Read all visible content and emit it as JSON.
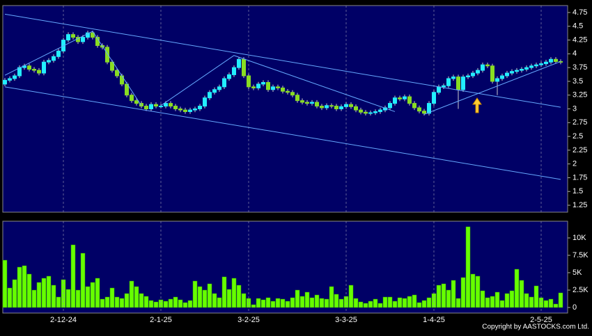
{
  "chart_data": [
    {
      "type": "candlestick",
      "open": [
        3.45,
        3.52,
        3.55,
        3.6,
        3.75,
        3.78,
        3.72,
        3.7,
        3.65,
        3.85,
        3.88,
        3.95,
        4.05,
        4.25,
        4.35,
        4.3,
        4.22,
        4.3,
        4.38,
        4.3,
        4.15,
        4.12,
        3.85,
        3.7,
        3.6,
        3.45,
        3.25,
        3.15,
        3.1,
        3.05,
        3.0,
        3.08,
        3.05,
        3.05,
        3.1,
        3.05,
        3.0,
        2.98,
        2.95,
        2.98,
        3.0,
        3.05,
        3.2,
        3.3,
        3.35,
        3.4,
        3.55,
        3.62,
        3.75,
        3.9,
        3.6,
        3.4,
        3.38,
        3.45,
        3.48,
        3.35,
        3.4,
        3.38,
        3.32,
        3.3,
        3.25,
        3.15,
        3.12,
        3.1,
        3.12,
        3.05,
        3.02,
        3.06,
        3.05,
        3.0,
        3.04,
        3.08,
        3.04,
        2.98,
        2.94,
        2.92,
        2.93,
        2.95,
        2.98,
        3.02,
        3.1,
        3.2,
        3.18,
        3.22,
        3.1,
        3.02,
        2.96,
        2.92,
        3.1,
        3.3,
        3.4,
        3.42,
        3.55,
        3.58,
        3.35,
        3.58,
        3.6,
        3.65,
        3.7,
        3.8,
        3.78,
        3.5,
        3.55,
        3.6,
        3.65,
        3.68,
        3.7,
        3.72,
        3.75,
        3.78,
        3.8,
        3.82,
        3.85,
        3.9,
        3.86
      ],
      "high": [
        3.56,
        3.59,
        3.64,
        3.79,
        3.82,
        3.82,
        3.76,
        3.74,
        3.89,
        3.92,
        3.99,
        4.09,
        4.29,
        4.39,
        4.39,
        4.34,
        4.34,
        4.42,
        4.42,
        4.34,
        4.19,
        4.16,
        3.89,
        3.74,
        3.64,
        3.49,
        3.29,
        3.19,
        3.14,
        3.09,
        3.12,
        3.12,
        3.09,
        3.14,
        3.14,
        3.09,
        3.04,
        3.02,
        3.02,
        3.04,
        3.09,
        3.24,
        3.34,
        3.39,
        3.44,
        3.59,
        3.66,
        3.79,
        3.94,
        3.94,
        3.64,
        3.44,
        3.49,
        3.52,
        3.52,
        3.44,
        3.44,
        3.42,
        3.36,
        3.34,
        3.29,
        3.19,
        3.16,
        3.16,
        3.16,
        3.09,
        3.1,
        3.1,
        3.09,
        3.08,
        3.12,
        3.12,
        3.08,
        3.02,
        2.98,
        2.97,
        2.99,
        3.02,
        3.06,
        3.14,
        3.24,
        3.24,
        3.26,
        3.26,
        3.14,
        3.06,
        3.0,
        3.14,
        3.34,
        3.44,
        3.46,
        3.59,
        3.62,
        3.62,
        3.62,
        3.64,
        3.69,
        3.74,
        3.84,
        3.84,
        3.82,
        3.59,
        3.64,
        3.69,
        3.72,
        3.74,
        3.76,
        3.79,
        3.82,
        3.84,
        3.86,
        3.89,
        3.94,
        3.94,
        3.9
      ],
      "low": [
        3.41,
        3.48,
        3.51,
        3.56,
        3.71,
        3.68,
        3.66,
        3.61,
        3.61,
        3.81,
        3.84,
        3.91,
        4.01,
        4.21,
        4.26,
        4.18,
        4.18,
        4.26,
        4.26,
        4.11,
        4.08,
        3.81,
        3.66,
        3.56,
        3.41,
        3.21,
        3.11,
        3.06,
        3.01,
        2.96,
        2.96,
        3.01,
        3.01,
        3.01,
        3.01,
        2.96,
        2.94,
        2.91,
        2.91,
        2.94,
        2.96,
        3.01,
        3.16,
        3.26,
        3.31,
        3.36,
        3.51,
        3.58,
        3.71,
        3.56,
        3.36,
        3.34,
        3.34,
        3.41,
        3.31,
        3.31,
        3.34,
        3.28,
        3.26,
        3.21,
        3.11,
        3.08,
        3.06,
        3.06,
        3.01,
        2.98,
        2.98,
        3.01,
        2.96,
        2.96,
        3.0,
        3.0,
        2.94,
        2.9,
        2.88,
        2.88,
        2.89,
        2.91,
        2.94,
        2.98,
        3.06,
        3.14,
        3.14,
        3.06,
        2.98,
        2.92,
        2.88,
        2.88,
        3.06,
        3.26,
        3.36,
        3.38,
        3.51,
        3.0,
        3.31,
        3.54,
        3.56,
        3.61,
        3.66,
        3.74,
        3.46,
        3.25,
        3.51,
        3.56,
        3.61,
        3.64,
        3.66,
        3.68,
        3.71,
        3.74,
        3.76,
        3.78,
        3.81,
        3.82,
        3.81
      ],
      "close": [
        3.52,
        3.55,
        3.6,
        3.75,
        3.78,
        3.72,
        3.7,
        3.65,
        3.85,
        3.88,
        3.95,
        4.05,
        4.25,
        4.35,
        4.3,
        4.22,
        4.3,
        4.38,
        4.3,
        4.15,
        4.12,
        3.85,
        3.7,
        3.6,
        3.45,
        3.25,
        3.15,
        3.1,
        3.05,
        3.0,
        3.08,
        3.05,
        3.05,
        3.1,
        3.05,
        3.0,
        2.98,
        2.95,
        2.98,
        3.0,
        3.05,
        3.2,
        3.3,
        3.35,
        3.4,
        3.55,
        3.62,
        3.75,
        3.9,
        3.6,
        3.4,
        3.38,
        3.45,
        3.48,
        3.35,
        3.4,
        3.38,
        3.32,
        3.3,
        3.25,
        3.15,
        3.12,
        3.1,
        3.12,
        3.05,
        3.02,
        3.06,
        3.05,
        3.0,
        3.04,
        3.08,
        3.04,
        2.98,
        2.94,
        2.92,
        2.93,
        2.95,
        2.98,
        3.02,
        3.1,
        3.2,
        3.18,
        3.22,
        3.1,
        3.02,
        2.96,
        2.92,
        3.1,
        3.3,
        3.4,
        3.42,
        3.55,
        3.58,
        3.35,
        3.58,
        3.6,
        3.65,
        3.7,
        3.8,
        3.78,
        3.5,
        3.55,
        3.6,
        3.65,
        3.68,
        3.7,
        3.72,
        3.75,
        3.78,
        3.8,
        3.82,
        3.85,
        3.9,
        3.86,
        3.85
      ],
      "up_color": "#22eeff",
      "down_color": "#88dd22",
      "ylim": [
        1.124,
        4.876
      ],
      "yticks": [
        4.75,
        4.5,
        4.25,
        4,
        3.75,
        3.5,
        3.25,
        3,
        2.75,
        2.5,
        2.25,
        2,
        1.75,
        1.5,
        1.25
      ],
      "lines": [
        {
          "x": [
            0,
            114
          ],
          "y": [
            4.72,
            3.03
          ]
        },
        {
          "x": [
            0,
            114
          ],
          "y": [
            3.4,
            1.72
          ]
        },
        {
          "x": [
            0,
            18
          ],
          "y": [
            3.61,
            4.41
          ]
        },
        {
          "x": [
            18,
            28
          ],
          "y": [
            4.41,
            3.06
          ]
        },
        {
          "x": [
            32,
            47
          ],
          "y": [
            3.06,
            3.97
          ]
        },
        {
          "x": [
            47,
            80
          ],
          "y": [
            3.97,
            2.95
          ]
        },
        {
          "x": [
            86,
            114
          ],
          "y": [
            2.9,
            3.86
          ]
        }
      ],
      "line_color": "#66aaff"
    },
    {
      "type": "bar",
      "categories": [
        null,
        null,
        null,
        null,
        null,
        null,
        null,
        null,
        null,
        null,
        null,
        null,
        "2-12-24",
        null,
        null,
        null,
        null,
        null,
        null,
        null,
        null,
        null,
        null,
        null,
        null,
        null,
        null,
        null,
        null,
        null,
        null,
        null,
        "2-1-25",
        null,
        null,
        null,
        null,
        null,
        null,
        null,
        null,
        null,
        null,
        null,
        null,
        null,
        null,
        null,
        null,
        null,
        "3-2-25",
        null,
        null,
        null,
        null,
        null,
        null,
        null,
        null,
        null,
        null,
        null,
        null,
        null,
        null,
        null,
        null,
        null,
        null,
        null,
        "3-3-25",
        null,
        null,
        null,
        null,
        null,
        null,
        null,
        null,
        null,
        null,
        null,
        null,
        null,
        null,
        null,
        null,
        null,
        "1-4-25",
        null,
        null,
        null,
        null,
        null,
        null,
        null,
        null,
        null,
        null,
        null,
        null,
        null,
        null,
        null,
        null,
        null,
        null,
        null,
        null,
        null,
        "2-5-25",
        null,
        null,
        null,
        null
      ],
      "values": [
        6800,
        2800,
        4000,
        5800,
        6000,
        4800,
        2500,
        3600,
        4200,
        4500,
        3200,
        1500,
        4000,
        2600,
        9000,
        2500,
        7800,
        3000,
        3600,
        4200,
        1200,
        1500,
        2800,
        1500,
        1300,
        2000,
        3800,
        3000,
        2000,
        1600,
        1000,
        800,
        1100,
        900,
        1200,
        1500,
        1100,
        700,
        1000,
        3800,
        3000,
        2500,
        3400,
        2000,
        1400,
        4400,
        2600,
        4200,
        3200,
        2000,
        1300,
        400,
        1300,
        1100,
        1400,
        900,
        1300,
        1200,
        900,
        1400,
        2500,
        1600,
        2200,
        1400,
        1800,
        1300,
        1200,
        3000,
        1900,
        1200,
        1600,
        3200,
        1300,
        800,
        600,
        900,
        1200,
        600,
        1500,
        1500,
        900,
        1400,
        1300,
        1600,
        1800,
        700,
        1000,
        1400,
        2000,
        3200,
        3400,
        2500,
        3900,
        1300,
        4300,
        11600,
        4800,
        4500,
        2400,
        1400,
        1600,
        2200,
        1000,
        2000,
        2400,
        5500,
        3900,
        2000,
        1500,
        3100,
        1400,
        1000,
        1200,
        500,
        2100
      ],
      "color": "#66ff00",
      "ylim": [
        -800,
        12400
      ],
      "yticks": [
        {
          "value": 10000,
          "label": "10K"
        },
        {
          "value": 7500,
          "label": "7.5K"
        },
        {
          "value": 5000,
          "label": "5K"
        },
        {
          "value": 2500,
          "label": "2.5K"
        },
        0
      ]
    }
  ],
  "footer": "Copyright by AASTOCKS.com Ltd."
}
